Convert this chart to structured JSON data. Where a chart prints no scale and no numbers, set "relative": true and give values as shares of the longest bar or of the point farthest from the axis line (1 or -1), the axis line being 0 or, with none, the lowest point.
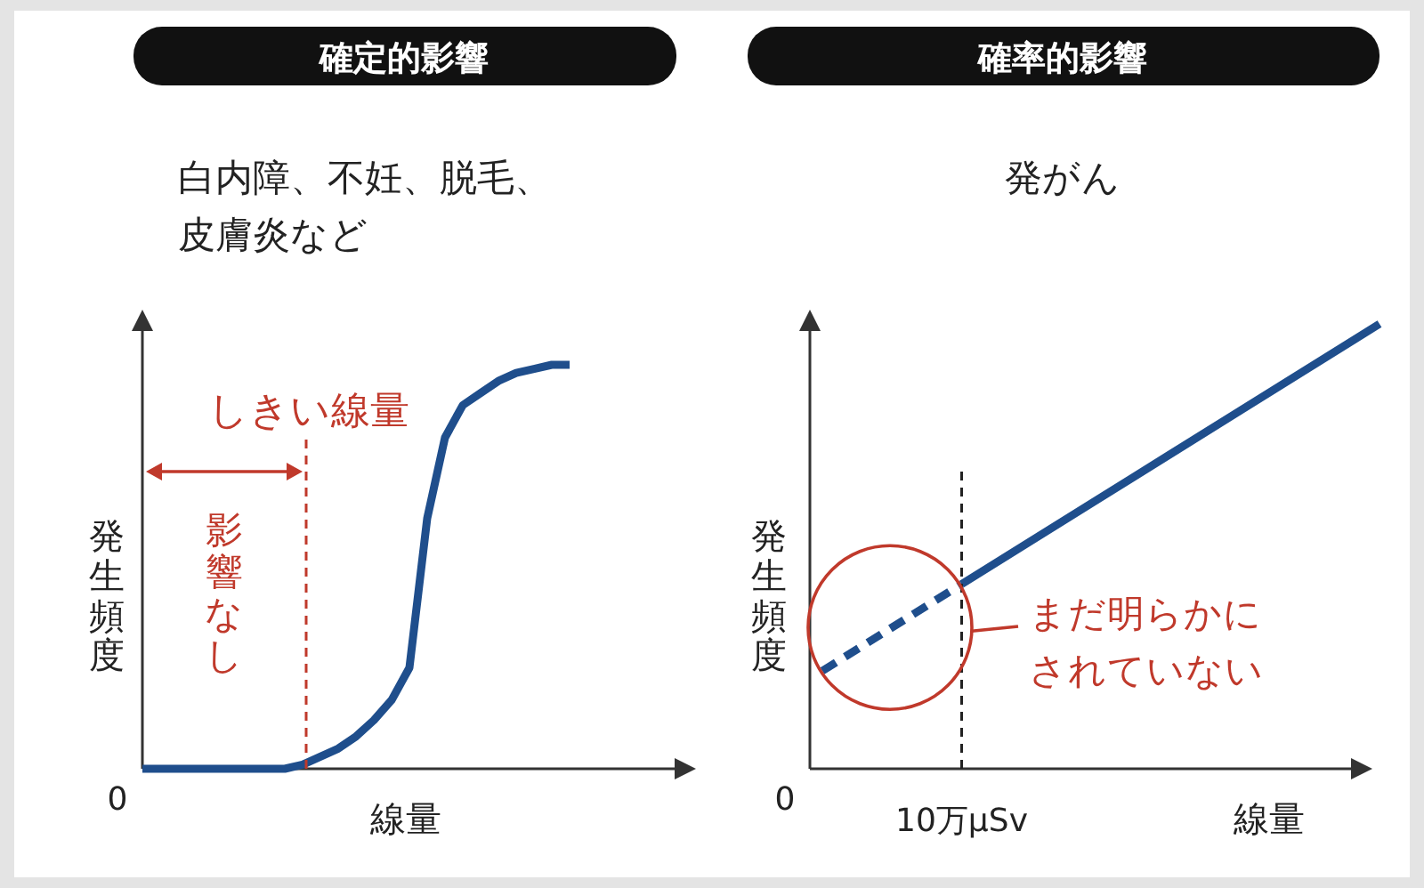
{
  "chart_data": [
    {
      "type": "line",
      "title": "確定的影響",
      "subtitle": "白内障、不妊、脱毛、皮膚炎など",
      "xlabel": "線量",
      "ylabel": "発生頻度",
      "relative": true,
      "categories": [
        null,
        null,
        null,
        null,
        null,
        null,
        null,
        null,
        null,
        null,
        null,
        null,
        null,
        null,
        null,
        null,
        null,
        null,
        null,
        null,
        null,
        null,
        null,
        null,
        null,
        null,
        null,
        null,
        null,
        null,
        null
      ],
      "series": [
        {
          "color": "#1f4e8c",
          "values": [
            0,
            0,
            0,
            0,
            0,
            0,
            0,
            0,
            0,
            0.01,
            0.03,
            0.05,
            0.08,
            0.12,
            0.17,
            0.25,
            0.62,
            0.82,
            0.9,
            0.93,
            0.96,
            0.98,
            0.99,
            1,
            1,
            null,
            null,
            null,
            null,
            null,
            null
          ]
        }
      ],
      "annotations": [
        "0",
        "影響なし",
        "しきい線量"
      ]
    },
    {
      "type": "line",
      "title": "確率的影響",
      "subtitle": "発がん",
      "xlabel": "線量",
      "ylabel": "発生頻度",
      "relative": true,
      "categories": [
        null,
        null,
        null,
        null,
        null
      ],
      "series": [
        {
          "color": "#1f4e8c",
          "line_style": "dashed",
          "values": [
            0.22,
            0.415,
            null,
            null,
            null
          ]
        },
        {
          "color": "#1f4e8c",
          "line_style": "solid",
          "values": [
            null,
            0.415,
            0.61,
            0.805,
            1
          ]
        }
      ],
      "annotations": [
        "0",
        "まだ明らかにされていない",
        {
          "text": "10万μSv"
        }
      ]
    }
  ]
}
